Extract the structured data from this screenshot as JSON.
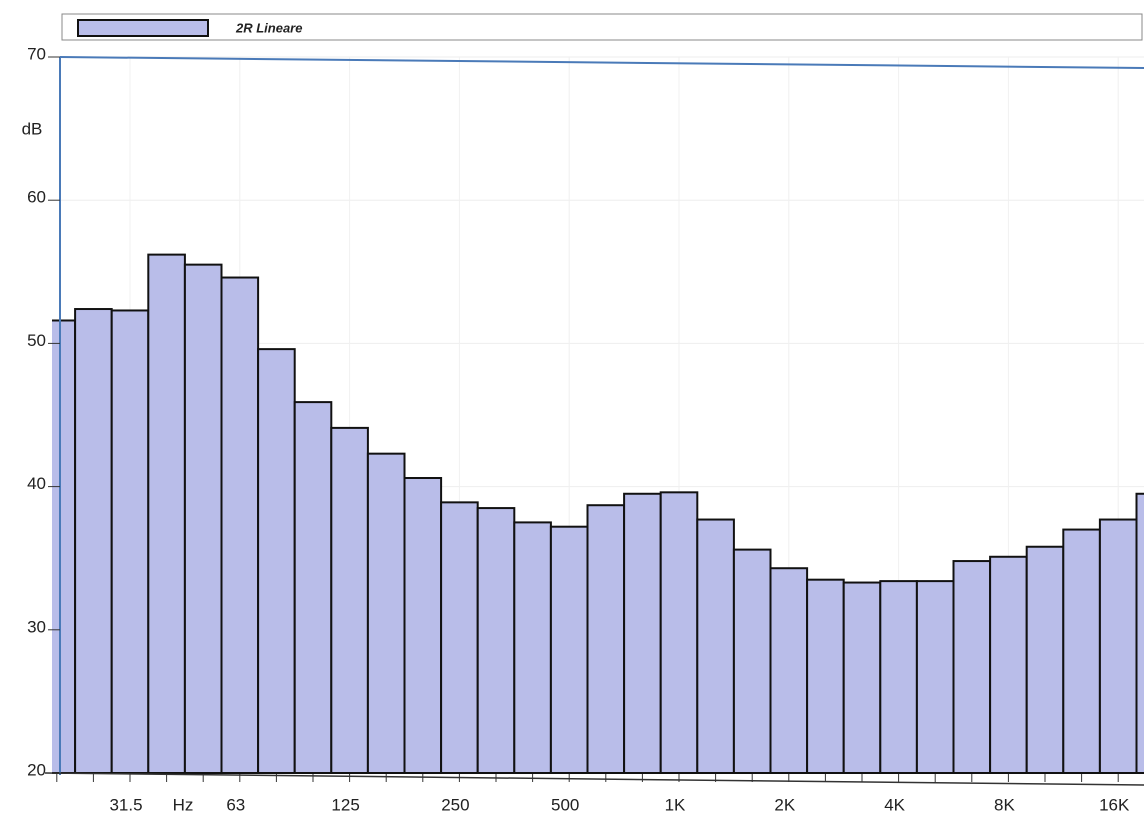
{
  "chart_data": {
    "type": "bar",
    "y_label": "dB",
    "x_label": "Hz",
    "categories": [
      null,
      null,
      "31.5",
      null,
      null,
      "63",
      null,
      null,
      "125",
      null,
      null,
      "250",
      null,
      null,
      "500",
      null,
      null,
      "1K",
      null,
      null,
      "2K",
      null,
      null,
      "4K",
      null,
      null,
      "8K",
      null,
      null,
      "16K",
      null
    ],
    "series": [
      {
        "name": "2R Lineare",
        "color": "#b9bde9",
        "values": [
          51.6,
          52.4,
          52.3,
          56.2,
          55.5,
          54.6,
          49.6,
          45.9,
          44.1,
          42.3,
          40.6,
          38.9,
          38.5,
          37.5,
          37.2,
          38.7,
          39.5,
          39.6,
          37.7,
          35.6,
          34.3,
          33.5,
          33.3,
          33.4,
          33.4,
          34.8,
          35.1,
          35.8,
          37.0,
          37.7,
          39.5
        ]
      }
    ],
    "ylim": [
      20,
      70
    ],
    "yticks": [
      20,
      30,
      40,
      50,
      60,
      70
    ],
    "grid": true
  }
}
